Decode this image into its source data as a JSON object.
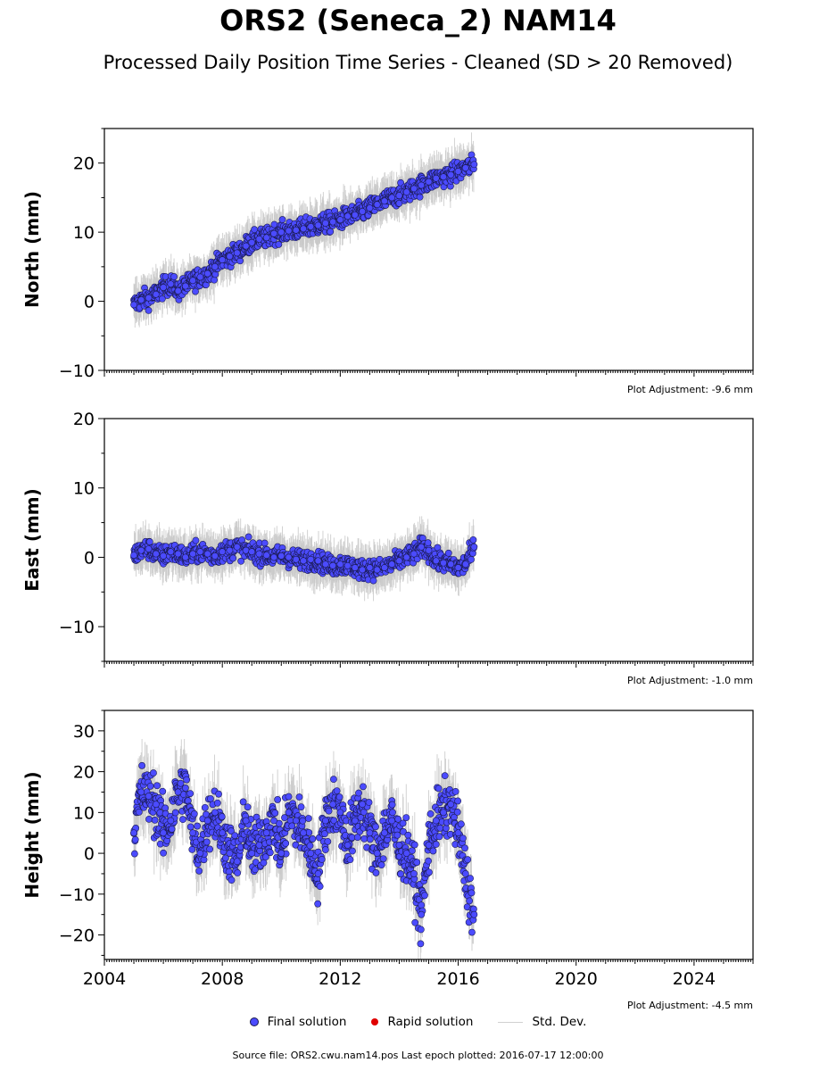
{
  "header": {
    "title": "ORS2 (Seneca_2) NAM14",
    "subtitle": "Processed Daily Position Time Series - Cleaned (SD > 20 Removed)"
  },
  "legend": {
    "final": "Final solution",
    "rapid": "Rapid solution",
    "std": "Std. Dev."
  },
  "footer": {
    "source": "Source file: ORS2.cwu.nam14.pos  Last epoch plotted: 2016-07-17 12:00:00"
  },
  "colors": {
    "final": "#4b4bff",
    "final_edge": "#1a1a50",
    "rapid": "#e00000",
    "std": "#c8c8c8"
  },
  "chart_data": [
    {
      "type": "scatter",
      "ylabel": "North (mm)",
      "ylim": [
        -10,
        25
      ],
      "yticks": [
        -10,
        0,
        10,
        20
      ],
      "xlim": [
        2004,
        2026
      ],
      "xticks": [
        2004,
        2008,
        2012,
        2016,
        2020,
        2024
      ],
      "show_xticklabels": false,
      "adjustment": "Plot Adjustment: -9.6 mm",
      "series": [
        {
          "name": "Final solution",
          "x": [
            2005.0,
            2005.25,
            2005.5,
            2005.75,
            2006.0,
            2006.25,
            2006.5,
            2006.75,
            2007.0,
            2007.25,
            2007.5,
            2007.75,
            2008.0,
            2008.25,
            2008.5,
            2008.8,
            2009.0,
            2009.25,
            2009.5,
            2009.75,
            2010.0,
            2010.25,
            2010.5,
            2010.75,
            2011.0,
            2011.25,
            2011.5,
            2011.75,
            2012.0,
            2012.25,
            2012.5,
            2012.75,
            2013.0,
            2013.25,
            2013.5,
            2013.75,
            2014.0,
            2014.25,
            2014.5,
            2014.75,
            2015.0,
            2015.25,
            2015.5,
            2015.75,
            2016.0,
            2016.25,
            2016.54
          ],
          "y": [
            -0.5,
            0.2,
            0.5,
            1.0,
            2.0,
            2.5,
            1.5,
            2.2,
            3.0,
            3.5,
            4.0,
            5.0,
            6.0,
            6.5,
            7.0,
            8.0,
            8.5,
            9.0,
            9.2,
            9.8,
            10.0,
            10.2,
            10.3,
            10.5,
            10.8,
            11.0,
            11.3,
            11.5,
            11.8,
            12.3,
            12.5,
            13.0,
            13.5,
            14.0,
            14.5,
            15.0,
            15.3,
            15.8,
            16.3,
            16.8,
            17.3,
            17.8,
            18.0,
            18.3,
            18.8,
            19.3,
            19.8
          ]
        }
      ]
    },
    {
      "type": "scatter",
      "ylabel": "East (mm)",
      "ylim": [
        -15,
        20
      ],
      "yticks": [
        -10,
        0,
        10,
        20
      ],
      "xlim": [
        2004,
        2026
      ],
      "xticks": [
        2004,
        2008,
        2012,
        2016,
        2020,
        2024
      ],
      "show_xticklabels": false,
      "adjustment": "Plot Adjustment: -1.0 mm",
      "series": [
        {
          "name": "Final solution",
          "x": [
            2005.0,
            2005.25,
            2005.5,
            2005.75,
            2006.0,
            2006.25,
            2006.5,
            2006.75,
            2007.0,
            2007.25,
            2007.5,
            2007.75,
            2008.0,
            2008.25,
            2008.5,
            2008.8,
            2009.0,
            2009.25,
            2009.5,
            2009.75,
            2010.0,
            2010.25,
            2010.5,
            2010.75,
            2011.0,
            2011.25,
            2011.5,
            2011.75,
            2012.0,
            2012.25,
            2012.5,
            2012.75,
            2013.0,
            2013.25,
            2013.5,
            2013.75,
            2014.0,
            2014.25,
            2014.5,
            2014.75,
            2015.0,
            2015.25,
            2015.5,
            2015.75,
            2016.0,
            2016.25,
            2016.54
          ],
          "y": [
            0.3,
            1.0,
            1.2,
            0.5,
            0.2,
            0.8,
            0.5,
            0.0,
            0.5,
            0.8,
            0.5,
            0.2,
            0.8,
            1.0,
            1.5,
            1.0,
            0.8,
            0.5,
            0.3,
            0.0,
            0.2,
            0.0,
            -0.3,
            -0.5,
            -0.3,
            -0.5,
            -1.0,
            -1.2,
            -1.0,
            -1.2,
            -1.5,
            -1.8,
            -1.5,
            -1.8,
            -1.5,
            -1.0,
            -0.5,
            0.0,
            0.5,
            1.5,
            1.0,
            -0.5,
            -0.8,
            -1.0,
            -1.5,
            -1.0,
            1.5
          ]
        }
      ]
    },
    {
      "type": "scatter",
      "ylabel": "Height (mm)",
      "ylim": [
        -26,
        35
      ],
      "yticks": [
        -20,
        -10,
        0,
        10,
        20,
        30
      ],
      "xlim": [
        2004,
        2026
      ],
      "xticks": [
        2004,
        2008,
        2012,
        2016,
        2020,
        2024
      ],
      "xticklabels": [
        "2004",
        "2008",
        "2012",
        "2016",
        "2020",
        "2024"
      ],
      "show_xticklabels": true,
      "adjustment": "Plot Adjustment: -4.5 mm",
      "series": [
        {
          "name": "Final solution",
          "x": [
            2005.0,
            2005.25,
            2005.5,
            2005.75,
            2006.0,
            2006.25,
            2006.5,
            2006.75,
            2007.0,
            2007.25,
            2007.5,
            2007.75,
            2008.0,
            2008.25,
            2008.5,
            2008.8,
            2009.0,
            2009.25,
            2009.5,
            2009.75,
            2010.0,
            2010.25,
            2010.5,
            2010.75,
            2011.0,
            2011.25,
            2011.5,
            2011.75,
            2012.0,
            2012.25,
            2012.5,
            2012.75,
            2013.0,
            2013.25,
            2013.5,
            2013.75,
            2014.0,
            2014.25,
            2014.5,
            2014.75,
            2015.0,
            2015.25,
            2015.5,
            2015.75,
            2016.0,
            2016.25,
            2016.54
          ],
          "y": [
            5.0,
            15.0,
            14.0,
            12.0,
            5.0,
            8.0,
            15.0,
            16.0,
            5.0,
            0.0,
            8.0,
            10.0,
            5.0,
            0.0,
            -2.0,
            8.0,
            0.0,
            2.0,
            5.0,
            8.0,
            0.0,
            10.0,
            8.0,
            5.0,
            0.0,
            -5.0,
            8.0,
            12.0,
            10.0,
            2.0,
            8.0,
            12.0,
            5.0,
            0.0,
            5.0,
            8.0,
            2.0,
            0.0,
            -5.0,
            -15.0,
            2.0,
            8.0,
            10.0,
            12.0,
            5.0,
            -5.0,
            -15.0
          ]
        }
      ]
    }
  ]
}
